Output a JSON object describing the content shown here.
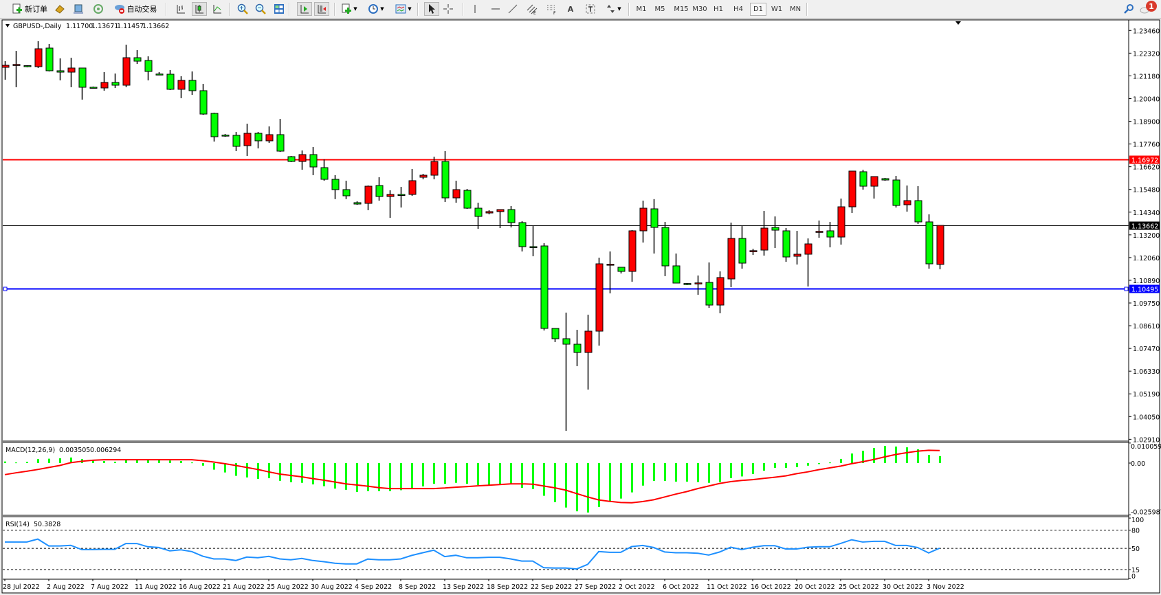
{
  "toolbar": {
    "new_order": "新订单",
    "auto_trading": "自动交易",
    "timeframes": [
      "M1",
      "M5",
      "M15",
      "M30",
      "H1",
      "H4",
      "D1",
      "W1",
      "MN"
    ],
    "active_timeframe": "D1",
    "notification_count": "1",
    "icons": [
      "new-order-icon",
      "market-watch-icon",
      "data-window-icon",
      "signals-icon",
      "auto-trading-icon",
      "bar-chart-icon",
      "candlestick-icon",
      "line-chart-icon",
      "zoom-in-icon",
      "zoom-out-icon",
      "tile-windows-icon",
      "autoscroll-icon",
      "chart-shift-icon",
      "indicators-icon",
      "periods-icon",
      "templates-icon",
      "cursor-icon",
      "crosshair-icon",
      "vertical-line-icon",
      "horizontal-line-icon",
      "trendline-icon",
      "equidistant-channel-icon",
      "fibonacci-icon",
      "text-icon",
      "text-label-icon",
      "arrows-icon",
      "search-icon",
      "notification-icon"
    ]
  },
  "header": {
    "symbol": "GBPUSD-,Daily",
    "open": "1.11700",
    "high": "1.13671",
    "low": "1.11457",
    "close": "1.13662"
  },
  "macd": {
    "label": "MACD(12,26,9)",
    "main": "0.003505",
    "signal": "0.006294",
    "axis": [
      "0.010059",
      "0.00",
      "-0.025987"
    ]
  },
  "rsi": {
    "label": "RSI(14)",
    "value": "50.3828",
    "axis": [
      "100",
      "80",
      "50",
      "15",
      "0"
    ]
  },
  "colors": {
    "bull": "#ff0000",
    "bear": "#00ff00",
    "hline_red": "#ff0000",
    "hline_blue": "#0000ff",
    "rsi": "#1e90ff",
    "signal": "#ff0000",
    "histogram": "#00ff00"
  },
  "hlines": [
    {
      "price": "1.16972",
      "color": "#ff0000"
    },
    {
      "price": "1.13662",
      "color": "#000000"
    },
    {
      "price": "1.10495",
      "color": "#0000ff"
    }
  ],
  "chart_data": {
    "type": "candlestick",
    "price_axis": [
      "1.23460",
      "1.22320",
      "1.21180",
      "1.20040",
      "1.18900",
      "1.17760",
      "1.16620",
      "1.15480",
      "1.14340",
      "1.13200",
      "1.12060",
      "1.10890",
      "1.09750",
      "1.08610",
      "1.07470",
      "1.06330",
      "1.05190",
      "1.04050",
      "1.02910"
    ],
    "ylim": [
      1.0291,
      1.2346
    ],
    "date_labels": [
      "28 Jul 2022",
      "2 Aug 2022",
      "7 Aug 2022",
      "11 Aug 2022",
      "16 Aug 2022",
      "21 Aug 2022",
      "25 Aug 2022",
      "30 Aug 2022",
      "4 Sep 2022",
      "8 Sep 2022",
      "13 Sep 2022",
      "18 Sep 2022",
      "22 Sep 2022",
      "27 Sep 2022",
      "2 Oct 2022",
      "6 Oct 2022",
      "11 Oct 2022",
      "16 Oct 2022",
      "20 Oct 2022",
      "25 Oct 2022",
      "30 Oct 2022",
      "3 Nov 2022"
    ],
    "ohlc": [
      [
        1.21606,
        1.21916,
        1.20984,
        1.21709
      ],
      [
        1.21744,
        1.22434,
        1.20604,
        1.2175
      ],
      [
        1.2169,
        1.21709,
        1.21606,
        1.2166
      ],
      [
        1.2164,
        1.22918,
        1.21571,
        1.22538
      ],
      [
        1.22573,
        1.2278,
        1.21399,
        1.21433
      ],
      [
        1.21433,
        1.22055,
        1.2095,
        1.21364
      ],
      [
        1.21364,
        1.22089,
        1.20604,
        1.21571
      ],
      [
        1.21571,
        1.21571,
        1.19983,
        1.20604
      ],
      [
        1.20604,
        1.20639,
        1.20535,
        1.2059
      ],
      [
        1.2057,
        1.21364,
        1.20432,
        1.20846
      ],
      [
        1.20846,
        1.21295,
        1.2057,
        1.20708
      ],
      [
        1.20708,
        1.22745,
        1.20604,
        1.22089
      ],
      [
        1.22089,
        1.22469,
        1.21778,
        1.21916
      ],
      [
        1.21951,
        1.22158,
        1.2095,
        1.21399
      ],
      [
        1.2127,
        1.21364,
        1.21226,
        1.2125
      ],
      [
        1.2126,
        1.21467,
        1.20466,
        1.20501
      ],
      [
        1.20501,
        1.21157,
        1.20052,
        1.2095
      ],
      [
        1.2095,
        1.21399,
        1.20224,
        1.20432
      ],
      [
        1.20432,
        1.20777,
        1.19223,
        1.19257
      ],
      [
        1.19292,
        1.19326,
        1.17876,
        1.18118
      ],
      [
        1.182,
        1.18256,
        1.18118,
        1.1817
      ],
      [
        1.18188,
        1.1836,
        1.17393,
        1.17634
      ],
      [
        1.17669,
        1.18774,
        1.17151,
        1.1829
      ],
      [
        1.1829,
        1.1836,
        1.17531,
        1.17911
      ],
      [
        1.17911,
        1.18636,
        1.17807,
        1.18222
      ],
      [
        1.18222,
        1.19016,
        1.17358,
        1.17393
      ],
      [
        1.17116,
        1.17151,
        1.16841,
        1.16875
      ],
      [
        1.16875,
        1.17427,
        1.1646,
        1.1722
      ],
      [
        1.1722,
        1.176,
        1.16184,
        1.16598
      ],
      [
        1.16564,
        1.16978,
        1.15908,
        1.15977
      ],
      [
        1.15977,
        1.16184,
        1.14981,
        1.15459
      ],
      [
        1.15459,
        1.15908,
        1.14981,
        1.15148
      ],
      [
        1.14803,
        1.14872,
        1.14699,
        1.14734
      ],
      [
        1.14768,
        1.15666,
        1.14423,
        1.15631
      ],
      [
        1.15666,
        1.1608,
        1.14906,
        1.15113
      ],
      [
        1.15113,
        1.15424,
        1.14043,
        1.15217
      ],
      [
        1.15217,
        1.15597,
        1.14561,
        1.152
      ],
      [
        1.15217,
        1.16495,
        1.15148,
        1.15908
      ],
      [
        1.1608,
        1.16253,
        1.15977,
        1.16184
      ],
      [
        1.16184,
        1.17116,
        1.15977,
        1.16875
      ],
      [
        1.16875,
        1.17393,
        1.14837,
        1.15044
      ],
      [
        1.15044,
        1.15908,
        1.14803,
        1.15459
      ],
      [
        1.15424,
        1.15493,
        1.14492,
        1.14526
      ],
      [
        1.14526,
        1.14803,
        1.1349,
        1.14112
      ],
      [
        1.14285,
        1.14423,
        1.14216,
        1.14354
      ],
      [
        1.14354,
        1.14457,
        1.13525,
        1.14457
      ],
      [
        1.14457,
        1.1463,
        1.13559,
        1.13801
      ],
      [
        1.13801,
        1.1387,
        1.12351,
        1.12593
      ],
      [
        1.12593,
        1.13663,
        1.12109,
        1.1258
      ],
      [
        1.12627,
        1.12765,
        1.0838,
        1.08483
      ],
      [
        1.08483,
        1.08483,
        1.07792,
        1.07965
      ],
      [
        1.07965,
        1.09277,
        1.03338,
        1.07689
      ],
      [
        1.07689,
        1.08414,
        1.06583,
        1.07274
      ],
      [
        1.07274,
        1.09174,
        1.05409,
        1.08345
      ],
      [
        1.08345,
        1.1204,
        1.0762,
        1.11729
      ],
      [
        1.1168,
        1.12351,
        1.10244,
        1.1171
      ],
      [
        1.11557,
        1.11557,
        1.11246,
        1.11349
      ],
      [
        1.11349,
        1.13421,
        1.10831,
        1.13387
      ],
      [
        1.13387,
        1.14906,
        1.128,
        1.14526
      ],
      [
        1.14492,
        1.14981,
        1.12247,
        1.13559
      ],
      [
        1.13559,
        1.13836,
        1.11108,
        1.11626
      ],
      [
        1.11626,
        1.12247,
        1.10762,
        1.10762
      ],
      [
        1.1074,
        1.10762,
        1.10658,
        1.1072
      ],
      [
        1.1075,
        1.11142,
        1.10175,
        1.1077
      ],
      [
        1.10797,
        1.11798,
        1.09519,
        1.09657
      ],
      [
        1.09657,
        1.11349,
        1.09243,
        1.11039
      ],
      [
        1.1097,
        1.13801,
        1.10555,
        1.13007
      ],
      [
        1.13007,
        1.13663,
        1.11488,
        1.11764
      ],
      [
        1.1237,
        1.12489,
        1.12178,
        1.1239
      ],
      [
        1.1242,
        1.14389,
        1.12143,
        1.13525
      ],
      [
        1.13559,
        1.14112,
        1.12523,
        1.13421
      ],
      [
        1.13387,
        1.13525,
        1.11833,
        1.12074
      ],
      [
        1.12109,
        1.13387,
        1.11695,
        1.12213
      ],
      [
        1.12213,
        1.13007,
        1.1059,
        1.1273
      ],
      [
        1.1334,
        1.13905,
        1.13041,
        1.1336
      ],
      [
        1.13387,
        1.13836,
        1.12558,
        1.13076
      ],
      [
        1.13076,
        1.1501,
        1.12696,
        1.14595
      ],
      [
        1.14595,
        1.16391,
        1.14285,
        1.16391
      ],
      [
        1.16357,
        1.1646,
        1.15459,
        1.15631
      ],
      [
        1.15631,
        1.16115,
        1.1501,
        1.16115
      ],
      [
        1.16011,
        1.16046,
        1.15908,
        1.15942
      ],
      [
        1.15942,
        1.16149,
        1.14561,
        1.14664
      ],
      [
        1.14699,
        1.15666,
        1.14354,
        1.14906
      ],
      [
        1.14906,
        1.15631,
        1.13732,
        1.13836
      ],
      [
        1.13836,
        1.14216,
        1.11488,
        1.11729
      ],
      [
        1.117,
        1.13671,
        1.11457,
        1.13662
      ]
    ],
    "macd_histogram": [
      0.0008,
      0.0003,
      0.0006,
      0.002,
      0.0022,
      0.0024,
      0.0028,
      0.002,
      0.0015,
      0.001,
      0.0007,
      0.0015,
      0.0015,
      0.0015,
      0.0015,
      0.0013,
      0.001,
      0.0003,
      -0.0013,
      -0.0033,
      -0.0047,
      -0.0064,
      -0.0072,
      -0.0079,
      -0.0076,
      -0.0089,
      -0.0096,
      -0.0099,
      -0.0107,
      -0.0116,
      -0.0128,
      -0.0134,
      -0.0145,
      -0.0141,
      -0.0141,
      -0.0141,
      -0.0136,
      -0.0129,
      -0.0117,
      -0.0104,
      -0.0104,
      -0.0099,
      -0.0104,
      -0.011,
      -0.011,
      -0.0107,
      -0.0107,
      -0.0124,
      -0.013,
      -0.0164,
      -0.0196,
      -0.0223,
      -0.0242,
      -0.0248,
      -0.022,
      -0.0193,
      -0.0178,
      -0.0147,
      -0.0113,
      -0.009,
      -0.009,
      -0.0093,
      -0.0093,
      -0.0095,
      -0.0099,
      -0.0095,
      -0.0075,
      -0.0067,
      -0.0055,
      -0.0038,
      -0.0024,
      -0.0024,
      -0.002,
      -0.0013,
      -0.0005,
      0.0003,
      0.0021,
      0.0048,
      0.0062,
      0.0076,
      0.0086,
      0.0083,
      0.0079,
      0.0069,
      0.0041,
      0.003505
    ],
    "macd_signal": [
      -0.0058,
      -0.0049,
      -0.0041,
      -0.0032,
      -0.0022,
      -0.0012,
      0.0002,
      0.0009,
      0.0014,
      0.0017,
      0.0017,
      0.0017,
      0.0017,
      0.0017,
      0.0017,
      0.0017,
      0.0017,
      0.0017,
      0.0012,
      0.0005,
      -0.0003,
      -0.0012,
      -0.0022,
      -0.0032,
      -0.0044,
      -0.0055,
      -0.0062,
      -0.0069,
      -0.0078,
      -0.0086,
      -0.0095,
      -0.0104,
      -0.011,
      -0.0116,
      -0.0123,
      -0.0128,
      -0.0128,
      -0.0128,
      -0.0128,
      -0.0128,
      -0.0125,
      -0.0121,
      -0.0118,
      -0.0114,
      -0.0111,
      -0.0108,
      -0.0104,
      -0.0104,
      -0.0106,
      -0.0115,
      -0.0124,
      -0.0136,
      -0.0153,
      -0.017,
      -0.0185,
      -0.0192,
      -0.0198,
      -0.0199,
      -0.0193,
      -0.0184,
      -0.017,
      -0.0156,
      -0.0143,
      -0.0128,
      -0.0115,
      -0.0102,
      -0.0093,
      -0.0087,
      -0.0083,
      -0.0077,
      -0.0071,
      -0.0064,
      -0.0053,
      -0.0044,
      -0.0033,
      -0.0024,
      -0.0015,
      -0.0003,
      0.0007,
      0.0018,
      0.0031,
      0.0043,
      0.0052,
      0.006,
      0.0064,
      0.006294
    ],
    "rsi": [
      60.5,
      60.5,
      60.5,
      65.3,
      54,
      54,
      55,
      48,
      48,
      48.4,
      48.4,
      58,
      58,
      52.6,
      51.4,
      46,
      47.7,
      44.7,
      37,
      32.6,
      32.6,
      30,
      35.6,
      34.5,
      36.8,
      32.6,
      31.1,
      33.4,
      30,
      28,
      25.5,
      24.4,
      24.4,
      32.3,
      31.1,
      31.1,
      32.6,
      38.3,
      42.8,
      47,
      36.4,
      38.6,
      34.5,
      34.5,
      35.3,
      35.3,
      32.6,
      29,
      29,
      18,
      17.6,
      17.6,
      16,
      23.6,
      44.7,
      43.5,
      43.5,
      53,
      54.8,
      51.4,
      44,
      42.8,
      42.8,
      42,
      39,
      44,
      52,
      48,
      51.8,
      54.4,
      54.4,
      49,
      49,
      51.8,
      52.6,
      52.6,
      58.2,
      64.2,
      60.5,
      61.6,
      61.6,
      54.8,
      54.8,
      51.4,
      42.4,
      50.3828
    ],
    "rsi_levels": [
      80,
      50,
      15
    ]
  }
}
